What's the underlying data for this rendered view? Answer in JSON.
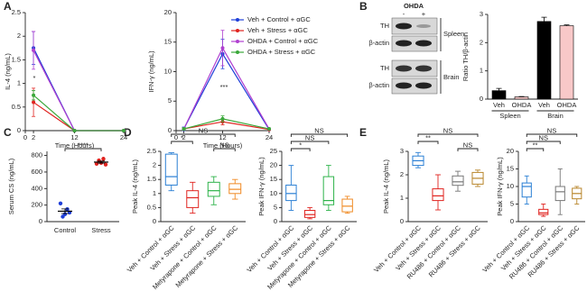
{
  "panel_labels": [
    "A",
    "B",
    "C",
    "D",
    "E"
  ],
  "blot": {
    "treatment": "OHDA",
    "lanes": [
      "-",
      "+"
    ],
    "rows": [
      "TH",
      "β-actin",
      "TH",
      "β-actin"
    ],
    "tissues": [
      "Spleen",
      "Brain"
    ]
  },
  "chart_data": [
    {
      "type": "line",
      "ylabel": "IL-4 (ng/mL)",
      "xlabel": "Time (Hours)",
      "x": [
        2,
        12,
        24
      ],
      "xlim": [
        0,
        24
      ],
      "xticks": [
        0,
        2,
        12,
        24
      ],
      "ylim": [
        0,
        2.5
      ],
      "yticks": [
        0,
        0.5,
        1,
        1.5,
        2,
        2.5
      ],
      "annotation": "*",
      "series": [
        {
          "name": "Veh + Control + αGC",
          "color": "#1f3fd8",
          "values": [
            1.75,
            0,
            0
          ],
          "errors": [
            0.35,
            0,
            0
          ]
        },
        {
          "name": "Veh + Stress + αGC",
          "color": "#e0231f",
          "values": [
            0.6,
            0,
            0
          ],
          "errors": [
            0.3,
            0,
            0
          ]
        },
        {
          "name": "OHDA + Control + αGC",
          "color": "#b040d0",
          "values": [
            1.7,
            0,
            0
          ],
          "errors": [
            0.4,
            0,
            0
          ]
        },
        {
          "name": "OHDA + Stress + αGC",
          "color": "#3aa83a",
          "values": [
            0.75,
            0,
            0
          ],
          "errors": [
            0.1,
            0,
            0
          ]
        }
      ]
    },
    {
      "type": "line",
      "ylabel": "IFN-γ (ng/mL)",
      "xlabel": "Time (Hours)",
      "x": [
        2,
        12,
        24
      ],
      "xlim": [
        0,
        24
      ],
      "xticks": [
        0,
        2,
        12,
        24
      ],
      "ylim": [
        0,
        20
      ],
      "yticks": [
        0,
        5,
        10,
        15,
        20
      ],
      "annotation": "***",
      "legend": true,
      "series": [
        {
          "name": "Veh + Control + αGC",
          "color": "#1f3fd8",
          "values": [
            0.3,
            13,
            0.2
          ],
          "errors": [
            0.3,
            2.5,
            0.1
          ]
        },
        {
          "name": "Veh + Stress + αGC",
          "color": "#e0231f",
          "values": [
            0.3,
            1.5,
            0.2
          ],
          "errors": [
            0.2,
            0.5,
            0.1
          ]
        },
        {
          "name": "OHDA + Control + αGC",
          "color": "#b040d0",
          "values": [
            0.3,
            14,
            0.3
          ],
          "errors": [
            0.2,
            3,
            0.1
          ]
        },
        {
          "name": "OHDA + Stress + αGC",
          "color": "#3aa83a",
          "values": [
            0.3,
            2,
            0.3
          ],
          "errors": [
            0.2,
            0.5,
            0.1
          ]
        }
      ]
    },
    {
      "type": "bar",
      "ylabel": "Ratio TH/β-actin",
      "categories": [
        "Veh",
        "OHDA",
        "Veh",
        "OHDA"
      ],
      "groups": [
        "Spleen",
        "Brain"
      ],
      "values": [
        0.3,
        0.08,
        2.75,
        2.6
      ],
      "errors": [
        0.08,
        0.01,
        0.15,
        0.03
      ],
      "colors": [
        "#000000",
        "#f8c8c8",
        "#000000",
        "#f8c8c8"
      ],
      "ylim": [
        0,
        3
      ],
      "yticks": [
        0,
        1,
        2,
        3
      ]
    },
    {
      "type": "dot",
      "ylabel": "Serum CS (ng/mL)",
      "categories": [
        "Control",
        "Stress"
      ],
      "color": "#1f3fd8",
      "colors": [
        "#1f3fd8",
        "#e0231f"
      ],
      "points": [
        [
          220,
          60,
          90,
          150,
          110
        ],
        [
          700,
          740,
          710,
          760,
          690
        ]
      ],
      "means": [
        126,
        720
      ],
      "errors": [
        28,
        13
      ],
      "ylim": [
        0,
        850
      ],
      "yticks": [
        0,
        200,
        400,
        600,
        800
      ],
      "annotations": [
        {
          "from": 0,
          "to": 1,
          "label": "****"
        }
      ]
    },
    {
      "type": "box",
      "ylabel": "Peak IL-4 (ng/mL)",
      "categories": [
        "Veh + Control + αGC",
        "Veh + Stress + αGC",
        "Metyrapone + Control + αGC",
        "Metyrapone + Stress + αGC"
      ],
      "colors": [
        "#2a7fd4",
        "#e0231f",
        "#2db34a",
        "#f08a24"
      ],
      "ylim": [
        0,
        2.5
      ],
      "yticks": [
        0,
        0.5,
        1,
        1.5,
        2,
        2.5
      ],
      "boxes": [
        {
          "min": 1.1,
          "q1": 1.3,
          "median": 1.6,
          "q3": 2.4,
          "max": 2.45
        },
        {
          "min": 0.3,
          "q1": 0.5,
          "median": 0.85,
          "q3": 1.1,
          "max": 1.4
        },
        {
          "min": 0.6,
          "q1": 0.9,
          "median": 1.1,
          "q3": 1.4,
          "max": 1.6
        },
        {
          "min": 0.8,
          "q1": 1.0,
          "median": 1.15,
          "q3": 1.35,
          "max": 1.5
        }
      ],
      "annotations": [
        {
          "from": 2,
          "to": 3,
          "label": "NS"
        },
        {
          "from": 0,
          "to": 1,
          "label": "*"
        },
        {
          "from": 0,
          "to": 3,
          "label": "NS"
        }
      ]
    },
    {
      "type": "box",
      "ylabel": "Peak IFN-γ (ng/mL)",
      "categories": [
        "Veh + Control + αGC",
        "Veh + Stress + αGC",
        "Metyrapone + Control + αGC",
        "Metyrapone + Stress + αGC"
      ],
      "colors": [
        "#2a7fd4",
        "#e0231f",
        "#2db34a",
        "#f08a24"
      ],
      "ylim": [
        0,
        25
      ],
      "yticks": [
        0,
        5,
        10,
        15,
        20,
        25
      ],
      "boxes": [
        {
          "min": 4,
          "q1": 7.5,
          "median": 10,
          "q3": 13,
          "max": 20
        },
        {
          "min": 1,
          "q1": 1.5,
          "median": 2.5,
          "q3": 4,
          "max": 5
        },
        {
          "min": 4,
          "q1": 6,
          "median": 7.5,
          "q3": 16,
          "max": 20
        },
        {
          "min": 3,
          "q1": 3.5,
          "median": 5.5,
          "q3": 8,
          "max": 9
        }
      ],
      "annotations": [
        {
          "from": 0,
          "to": 1,
          "label": "*"
        },
        {
          "from": 0,
          "to": 2,
          "label": "NS"
        },
        {
          "from": 0,
          "to": 3,
          "label": "NS"
        }
      ]
    },
    {
      "type": "box",
      "ylabel": "Peak IL-4 (ng/mL)",
      "categories": [
        "Veh + Control + αGC",
        "Veh + Stress + αGC",
        "RU486 + Control + αGC",
        "RU486 + Stress + αGC"
      ],
      "colors": [
        "#2a7fd4",
        "#e0231f",
        "#777777",
        "#b8862b"
      ],
      "ylim": [
        0,
        3
      ],
      "yticks": [
        0,
        1,
        2,
        3
      ],
      "boxes": [
        {
          "min": 2.3,
          "q1": 2.4,
          "median": 2.6,
          "q3": 2.8,
          "max": 2.95
        },
        {
          "min": 0.5,
          "q1": 0.9,
          "median": 1.1,
          "q3": 1.4,
          "max": 2.0
        },
        {
          "min": 1.3,
          "q1": 1.55,
          "median": 1.7,
          "q3": 1.95,
          "max": 2.15
        },
        {
          "min": 1.5,
          "q1": 1.6,
          "median": 1.85,
          "q3": 2.1,
          "max": 2.2
        }
      ],
      "annotations": [
        {
          "from": 2,
          "to": 3,
          "label": "NS"
        },
        {
          "from": 0,
          "to": 1,
          "label": "**"
        },
        {
          "from": 0,
          "to": 3,
          "label": "NS"
        }
      ]
    },
    {
      "type": "box",
      "ylabel": "Peak IFN-γ (ng/mL)",
      "categories": [
        "Veh + Control + αGC",
        "Veh + Stress + αGC",
        "RU486 + Control + αGC",
        "RU486 + Stress + αGC"
      ],
      "colors": [
        "#2a7fd4",
        "#e0231f",
        "#777777",
        "#b8862b"
      ],
      "ylim": [
        0,
        20
      ],
      "yticks": [
        0,
        5,
        10,
        15,
        20
      ],
      "boxes": [
        {
          "min": 5,
          "q1": 7,
          "median": 10,
          "q3": 11,
          "max": 13
        },
        {
          "min": 1.5,
          "q1": 2,
          "median": 2.5,
          "q3": 3.5,
          "max": 5
        },
        {
          "min": 2,
          "q1": 6,
          "median": 8.5,
          "q3": 10,
          "max": 15
        },
        {
          "min": 5,
          "q1": 6.5,
          "median": 8,
          "q3": 9.5,
          "max": 10
        }
      ],
      "annotations": [
        {
          "from": 0,
          "to": 1,
          "label": "**"
        },
        {
          "from": 0,
          "to": 2,
          "label": "NS"
        },
        {
          "from": 0,
          "to": 3,
          "label": "NS"
        }
      ]
    }
  ]
}
